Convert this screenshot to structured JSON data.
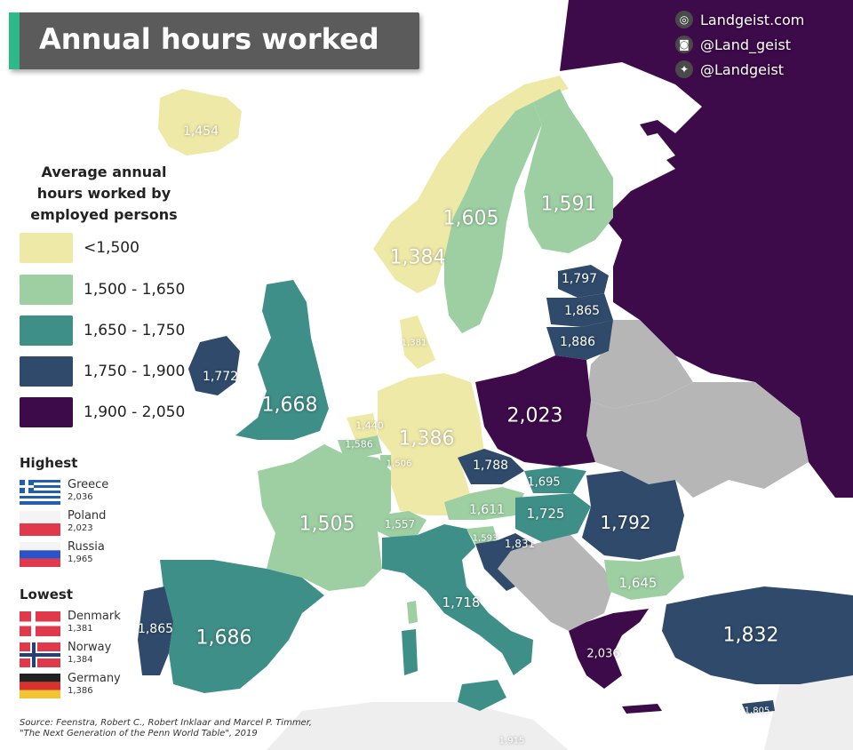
{
  "title": "Annual hours worked",
  "social": [
    {
      "icon": "globe-icon",
      "text": "Landgeist.com"
    },
    {
      "icon": "instagram-icon",
      "text": "@Land_geist"
    },
    {
      "icon": "twitter-icon",
      "text": "@Landgeist"
    }
  ],
  "legend": {
    "title_lines": [
      "Average annual",
      "hours worked by",
      "employed persons"
    ],
    "items": [
      {
        "label": "<1,500",
        "color": "#efe9a7"
      },
      {
        "label": "1,500 - 1,650",
        "color": "#9dcfa2"
      },
      {
        "label": "1,650 - 1,750",
        "color": "#3e8f88"
      },
      {
        "label": "1,750 - 1,900",
        "color": "#2f4a6b"
      },
      {
        "label": "1,900 - 2,050",
        "color": "#3d0a4a"
      }
    ],
    "no_data_color": "#b6b6b6"
  },
  "highest": {
    "heading": "Highest",
    "items": [
      {
        "name": "Greece",
        "value": "2,036"
      },
      {
        "name": "Poland",
        "value": "2,023"
      },
      {
        "name": "Russia",
        "value": "1,965"
      }
    ]
  },
  "lowest": {
    "heading": "Lowest",
    "items": [
      {
        "name": "Denmark",
        "value": "1,381"
      },
      {
        "name": "Norway",
        "value": "1,384"
      },
      {
        "name": "Germany",
        "value": "1,386"
      }
    ]
  },
  "map_labels": {
    "iceland": "1,454",
    "norway": "1,384",
    "sweden": "1,605",
    "finland": "1,591",
    "estonia": "1,797",
    "latvia": "1,865",
    "lithuania": "1,886",
    "denmark": "1,381",
    "ireland": "1,772",
    "uk": "1,668",
    "netherlands": "1,440",
    "belgium": "1,586",
    "luxembourg": "1,506",
    "germany": "1,386",
    "poland": "2,023",
    "czechia": "1,788",
    "slovakia": "1,695",
    "austria": "1,611",
    "hungary": "1,725",
    "switzerland": "1,557",
    "slovenia": "1,593",
    "croatia": "1,831",
    "romania": "1,792",
    "bulgaria": "1,645",
    "france": "1,505",
    "portugal": "1,865",
    "spain": "1,686",
    "italy": "1,718",
    "greece": "2,036",
    "turkey": "1,832",
    "cyprus": "1,805",
    "malta": "1,915"
  },
  "source_lines": [
    "Source: Feenstra, Robert C., Robert Inklaar and Marcel P. Timmer,",
    "\"The Next Generation of the Penn World Table\", 2019"
  ]
}
